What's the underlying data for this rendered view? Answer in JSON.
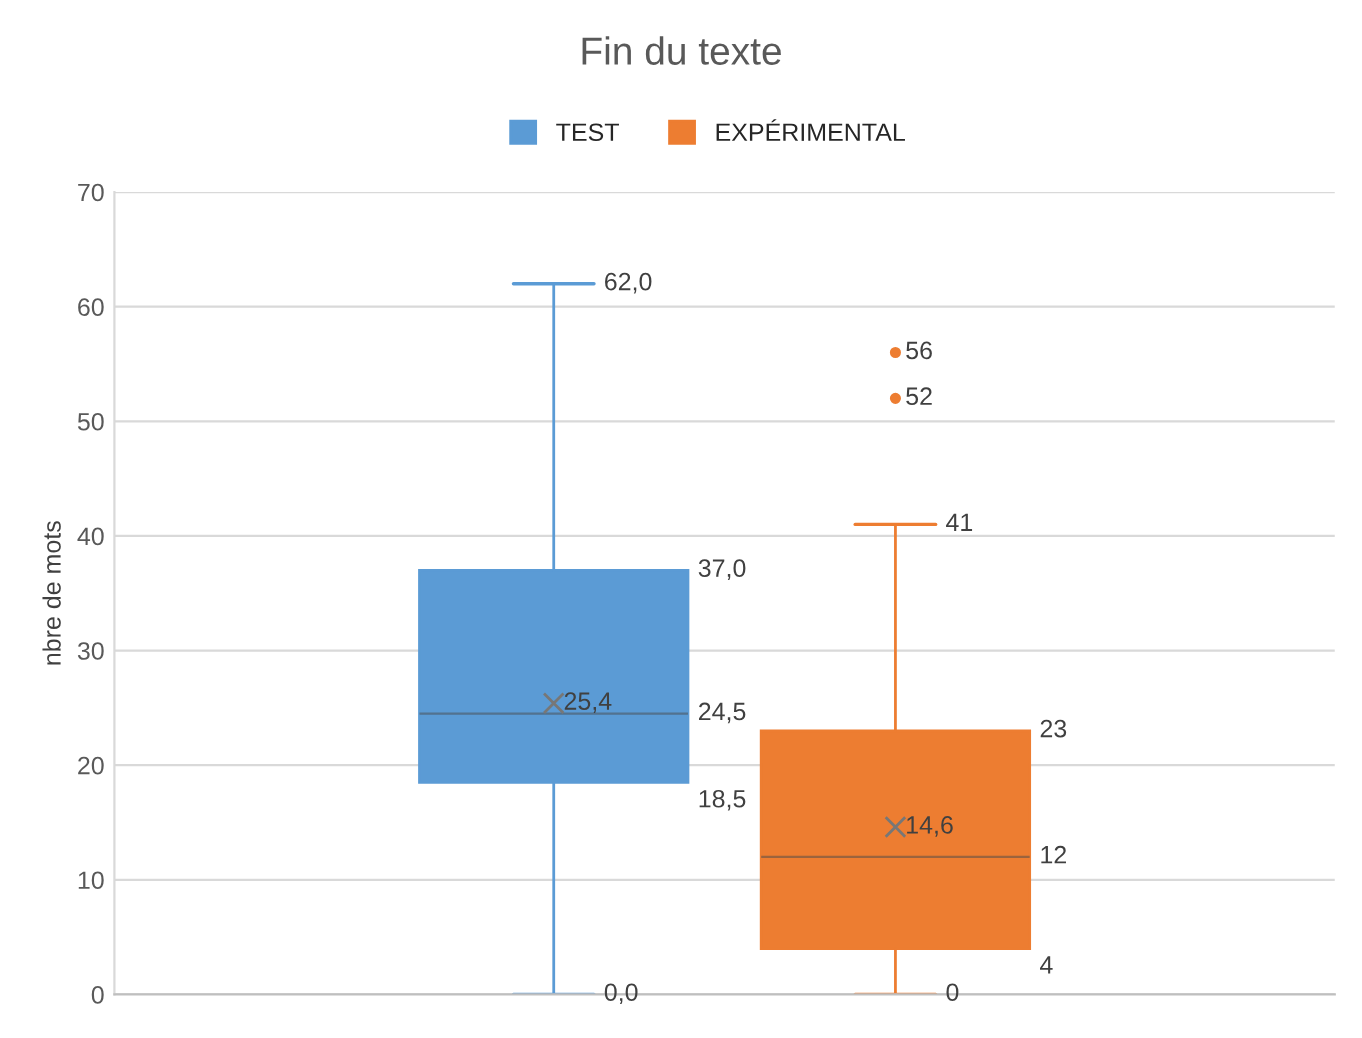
{
  "chart_data": {
    "type": "box",
    "title": "Fin du texte",
    "ylabel": "nbre de mots",
    "categories": [
      null
    ],
    "series": [
      {
        "name": "TEST",
        "color": "#5b9bd5",
        "boxes": [
          {
            "low": 0,
            "q1": 18.5,
            "median": 24.5,
            "q3": 37,
            "high": 62,
            "mean": 25.4
          }
        ]
      },
      {
        "name": "EXPÉRIMENTAL",
        "color": "#ed7d31",
        "boxes": [
          {
            "low": 0,
            "q1": 4,
            "median": 12,
            "q3": 23,
            "high": 41,
            "mean": 14.6,
            "outliers": [
              52,
              56
            ]
          }
        ]
      }
    ],
    "annotations": [
      "62,0",
      "37,0",
      "24,5",
      "18,5",
      "0,0",
      "25,4",
      "41",
      "23",
      "12",
      "4",
      "0",
      "14,6",
      "52",
      "56"
    ],
    "ylim": [
      0,
      70
    ],
    "yticks": [
      0,
      10,
      20,
      30,
      40,
      50,
      60,
      70
    ],
    "grid": "y",
    "legend": "top",
    "tick_labels": "y",
    "marker": "cross"
  }
}
